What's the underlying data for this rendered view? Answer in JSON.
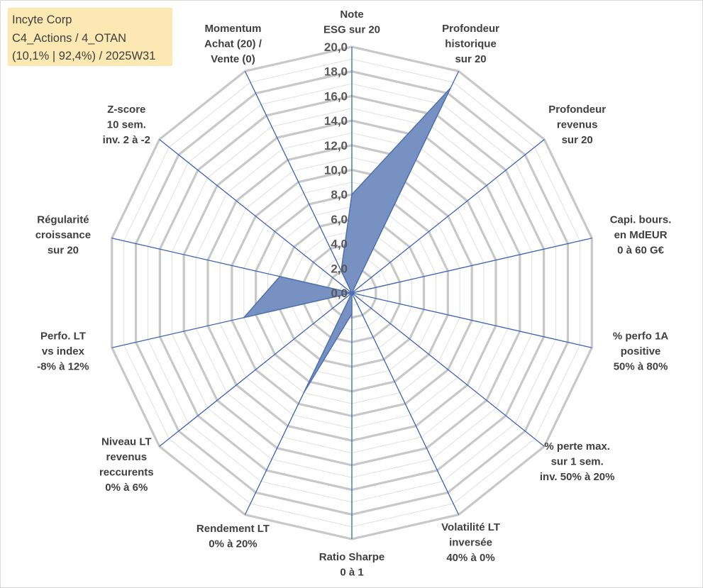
{
  "info_box": {
    "line1": "Incyte Corp",
    "line2": "C4_Actions / 4_OTAN",
    "line3": "(10,1% | 92,4%) / 2025W31"
  },
  "chart_data": {
    "type": "radar",
    "title": "",
    "categories": [
      [
        "Note",
        "ESG sur 20"
      ],
      [
        "Profondeur",
        "historique",
        "sur 20"
      ],
      [
        "Profondeur",
        "revenus",
        "sur 20"
      ],
      [
        "Capi. bours.",
        "en MdEUR",
        "0 à 60 G€"
      ],
      [
        "% perfo 1A",
        "positive",
        "50% à 80%"
      ],
      [
        "% perte max.",
        "sur 1 sem.",
        "inv. 50% à 20%"
      ],
      [
        "Volatilité LT",
        "inversée",
        "40% à 0%"
      ],
      [
        "Ratio Sharpe",
        "0 à 1"
      ],
      [
        "Rendement LT",
        "0% à 20%"
      ],
      [
        "Niveau LT",
        "revenus",
        "reccurents",
        "0% à 6%"
      ],
      [
        "Perfo. LT",
        "vs index",
        "-8% à 12%"
      ],
      [
        "Régularité",
        "croissance",
        "sur 20"
      ],
      [
        "Z-score",
        "10 sem.",
        "inv. 2 à -2"
      ],
      [
        "Momentum",
        "Achat (20) /",
        "Vente (0)"
      ]
    ],
    "values": [
      8.0,
      18.5,
      0.0,
      4.0,
      0.0,
      0.0,
      0.0,
      1.7,
      9.0,
      0.0,
      9.0,
      6.0,
      0.0,
      2.0
    ],
    "rlim": [
      0,
      20
    ],
    "ticks": [
      "0,0",
      "2,0",
      "4,0",
      "6,0",
      "8,0",
      "10,0",
      "12,0",
      "14,0",
      "16,0",
      "18,0",
      "20,0"
    ],
    "grid": true,
    "legend": "none",
    "colors": {
      "fill": "#7691c2",
      "line": "#4f70b0",
      "spoke": "#3b63b5",
      "ring": "#c8c8c8",
      "infobox_bg": "#fce8b2"
    }
  }
}
